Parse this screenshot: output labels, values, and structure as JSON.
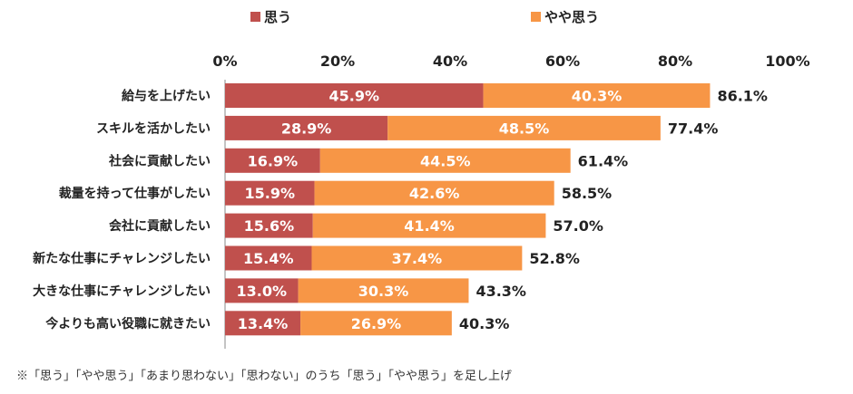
{
  "chart_data": {
    "type": "bar",
    "orientation": "horizontal",
    "stacked": true,
    "categories": [
      "給与を上げたい",
      "スキルを活かしたい",
      "社会に貢献したい",
      "裁量を持って仕事がしたい",
      "会社に貢献したい",
      "新たな仕事にチャレンジしたい",
      "大きな仕事にチャレンジしたい",
      "今よりも高い役職に就きたい"
    ],
    "series": [
      {
        "name": "思う",
        "color": "#c0504d",
        "values": [
          45.9,
          28.9,
          16.9,
          15.9,
          15.6,
          15.4,
          13.0,
          13.4
        ]
      },
      {
        "name": "やや思う",
        "color": "#f79646",
        "values": [
          40.3,
          48.5,
          44.5,
          42.6,
          41.4,
          37.4,
          30.3,
          26.9
        ]
      }
    ],
    "totals": [
      86.1,
      77.4,
      61.4,
      58.5,
      57.0,
      52.8,
      43.3,
      40.3
    ],
    "xlim": [
      0,
      100
    ],
    "xticks": [
      "0%",
      "20%",
      "40%",
      "60%",
      "80%",
      "100%"
    ],
    "legend_position": "top",
    "grid": false,
    "title": "",
    "xlabel": "",
    "ylabel": ""
  },
  "legend": {
    "items": [
      {
        "label": "思う",
        "color": "#c0504d"
      },
      {
        "label": "やや思う",
        "color": "#f79646"
      }
    ]
  },
  "footnote": "※「思う」「やや思う」「あまり思わない」「思わない」のうち「思う」「やや思う」を足し上げ"
}
